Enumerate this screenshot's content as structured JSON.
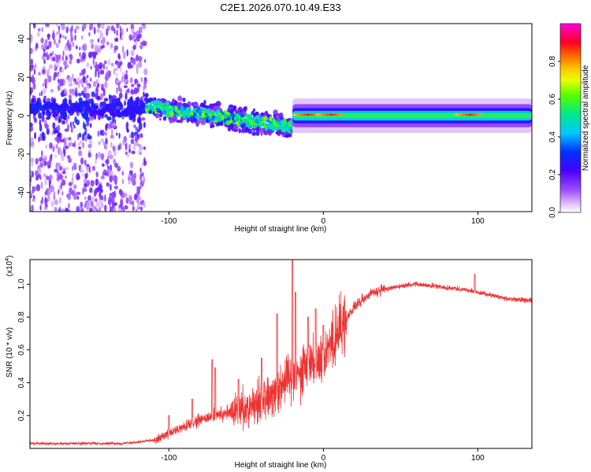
{
  "page_title": "C2E1.2026.070.10.49.E33",
  "chart_data": [
    {
      "type": "heatmap",
      "title": "C2E1.2026.070.10.49.E33",
      "xlabel": "Height of straight line (km)",
      "ylabel": "Frequency (Hz)",
      "xlim": [
        -190,
        135
      ],
      "ylim": [
        -50,
        48
      ],
      "x_ticks": [
        -100,
        0,
        100
      ],
      "y_ticks": [
        -40,
        -20,
        0,
        20,
        40
      ],
      "grid": false,
      "colorbar": {
        "label": "Normalized spectral amplitude",
        "range": [
          0.0,
          1.0
        ],
        "ticks": [
          0.0,
          0.2,
          0.4,
          0.6,
          0.8
        ],
        "tick_labels": [
          "0.0",
          "0.2",
          "0.4",
          "0.6",
          "0.8"
        ],
        "colormap": "rainbow (white-violet-blue-cyan-green-yellow-orange-red-magenta)"
      },
      "features": [
        {
          "region": "noise",
          "x_range": [
            -190,
            -115
          ],
          "freq_range": [
            -50,
            48
          ],
          "amplitude": 0.15
        },
        {
          "region": "transition",
          "x_range": [
            -115,
            -20
          ],
          "freq_center": [
            5,
            -6
          ],
          "amplitude": 0.45
        },
        {
          "region": "signal",
          "x_range": [
            -20,
            135
          ],
          "freq_center": 0,
          "amplitude": 0.55,
          "peaks_x": [
            -10,
            5,
            95
          ]
        }
      ]
    },
    {
      "type": "line",
      "xlabel": "Height of straight line (km)",
      "ylabel": "SNR (10 * v/v)",
      "y_exponent_label": "(x10",
      "y_exponent": "4",
      "y_exponent_close": ")",
      "xlim": [
        -190,
        135
      ],
      "ylim": [
        0,
        1.15
      ],
      "x_ticks": [
        -100,
        0,
        100
      ],
      "y_ticks": [
        0.2,
        0.4,
        0.6,
        0.8,
        1.0
      ],
      "y_tick_labels": [
        "0.2",
        "0.4",
        "0.6",
        "0.8",
        "1.0"
      ],
      "grid": false,
      "series": [
        {
          "name": "SNR",
          "color": "#ee3333",
          "x": [
            -190,
            -170,
            -150,
            -130,
            -120,
            -110,
            -100,
            -90,
            -80,
            -70,
            -60,
            -50,
            -40,
            -30,
            -25,
            -20,
            -15,
            -10,
            -5,
            0,
            10,
            20,
            30,
            40,
            50,
            60,
            70,
            80,
            90,
            100,
            110,
            120,
            135
          ],
          "values": [
            0.03,
            0.03,
            0.03,
            0.03,
            0.04,
            0.05,
            0.09,
            0.13,
            0.17,
            0.2,
            0.22,
            0.25,
            0.3,
            0.36,
            0.42,
            0.45,
            0.47,
            0.52,
            0.53,
            0.57,
            0.72,
            0.86,
            0.94,
            0.97,
            0.99,
            1.0,
            0.99,
            0.98,
            0.97,
            0.95,
            0.93,
            0.91,
            0.9
          ],
          "spikes": [
            {
              "x": -100,
              "value": 0.2
            },
            {
              "x": -85,
              "value": 0.3
            },
            {
              "x": -72,
              "value": 0.54
            },
            {
              "x": -70,
              "value": 0.49
            },
            {
              "x": -55,
              "value": 0.42
            },
            {
              "x": -40,
              "value": 0.55
            },
            {
              "x": -30,
              "value": 0.82
            },
            {
              "x": -20,
              "value": 1.15
            },
            {
              "x": -18,
              "value": 0.95
            },
            {
              "x": -10,
              "value": 0.8
            },
            {
              "x": -5,
              "value": 0.85
            },
            {
              "x": 0,
              "value": 0.75
            },
            {
              "x": 98,
              "value": 1.06
            }
          ]
        }
      ]
    }
  ]
}
